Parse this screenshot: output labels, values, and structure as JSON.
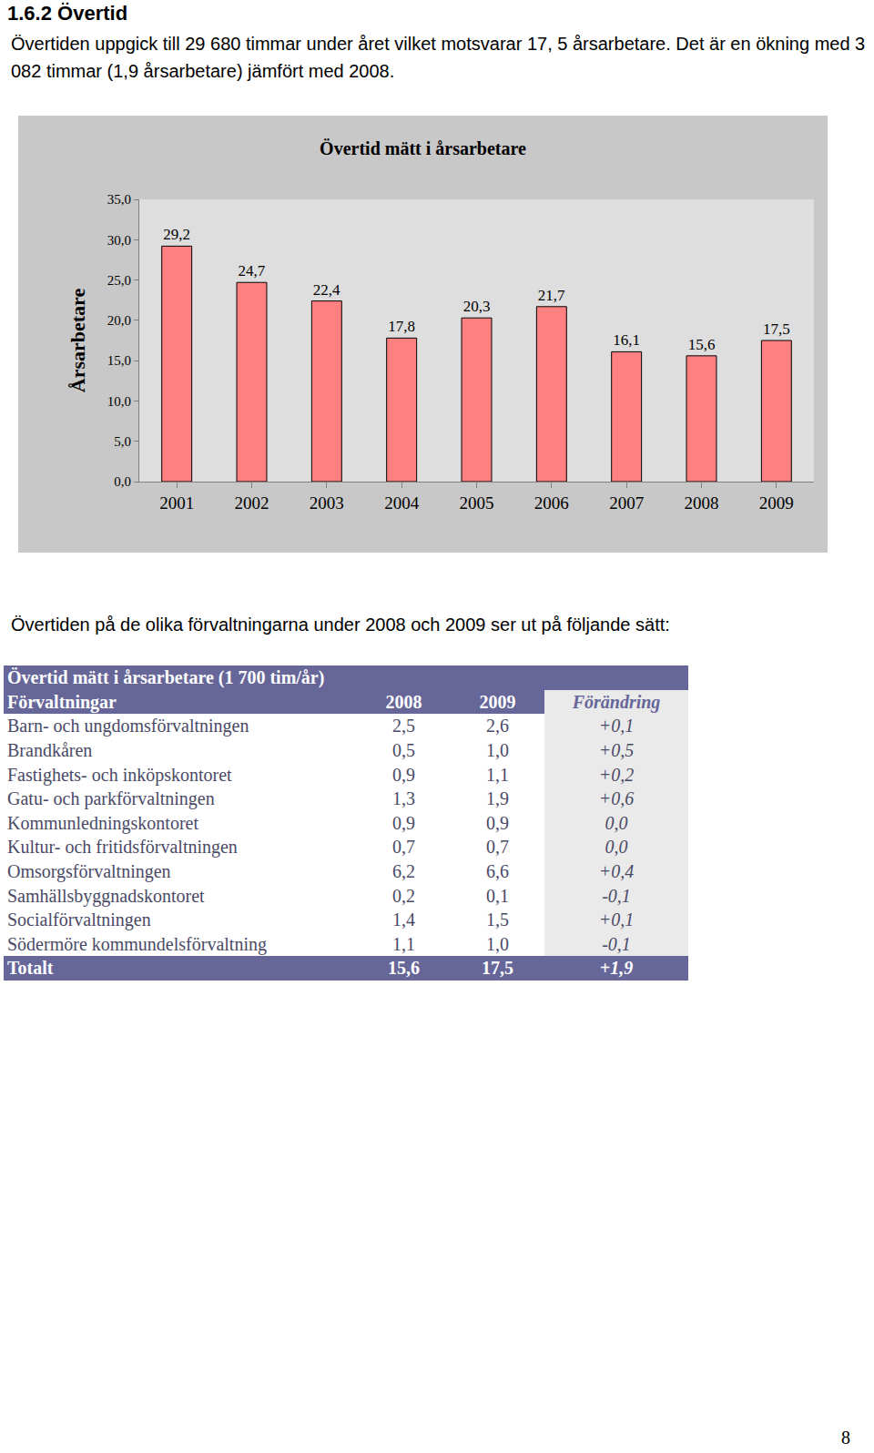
{
  "heading": "1.6.2 Övertid",
  "intro": "Övertiden uppgick till 29 680 timmar under året vilket motsvarar 17, 5 årsarbetare. Det är en ökning med 3 082 timmar (1,9 årsarbetare) jämfört med 2008.",
  "chart_data": {
    "type": "bar",
    "title": "Övertid mätt i årsarbetare",
    "y_label": "Årsarbetare",
    "categories": [
      "2001",
      "2002",
      "2003",
      "2004",
      "2005",
      "2006",
      "2007",
      "2008",
      "2009"
    ],
    "values": [
      29.2,
      24.7,
      22.4,
      17.8,
      20.3,
      21.7,
      16.1,
      15.6,
      17.5
    ],
    "value_labels": [
      "29,2",
      "24,7",
      "22,4",
      "17,8",
      "20,3",
      "21,7",
      "16,1",
      "15,6",
      "17,5"
    ],
    "data_labels": true,
    "color": "#ff8080",
    "grid": false,
    "ylim": [
      0,
      35
    ],
    "yticks": [
      {
        "value": 0,
        "label": "0,0"
      },
      {
        "value": 5,
        "label": "5,0"
      },
      {
        "value": 10,
        "label": "10,0"
      },
      {
        "value": 15,
        "label": "15,0"
      },
      {
        "value": 20,
        "label": "20,0"
      },
      {
        "value": 25,
        "label": "25,0"
      },
      {
        "value": 30,
        "label": "30,0"
      },
      {
        "value": 35,
        "label": "35,0"
      }
    ]
  },
  "table_intro": "Övertiden på de olika förvaltningarna under 2008 och 2009 ser ut på följande sätt:",
  "table": {
    "title": "Övertid mätt i årsarbetare (1 700 tim/år)",
    "header": [
      "Förvaltningar",
      "2008",
      "2009",
      "Förändring"
    ],
    "rows": [
      [
        "Barn- och ungdomsförvaltningen",
        "2,5",
        "2,6",
        "+0,1"
      ],
      [
        "Brandkåren",
        "0,5",
        "1,0",
        "+0,5"
      ],
      [
        "Fastighets- och inköpskontoret",
        "0,9",
        "1,1",
        "+0,2"
      ],
      [
        "Gatu- och parkförvaltningen",
        "1,3",
        "1,9",
        "+0,6"
      ],
      [
        "Kommunledningskontoret",
        "0,9",
        "0,9",
        "0,0"
      ],
      [
        "Kultur- och fritidsförvaltningen",
        "0,7",
        "0,7",
        "0,0"
      ],
      [
        "Omsorgsförvaltningen",
        "6,2",
        "6,6",
        "+0,4"
      ],
      [
        "Samhällsbyggnadskontoret",
        "0,2",
        "0,1",
        "-0,1"
      ],
      [
        "Socialförvaltningen",
        "1,4",
        "1,5",
        "+0,1"
      ],
      [
        "Södermöre kommundelsförvaltning",
        "1,1",
        "1,0",
        "-0,1"
      ]
    ],
    "total": [
      "Totalt",
      "15,6",
      "17,5",
      "+1,9"
    ]
  },
  "page_number": "8"
}
